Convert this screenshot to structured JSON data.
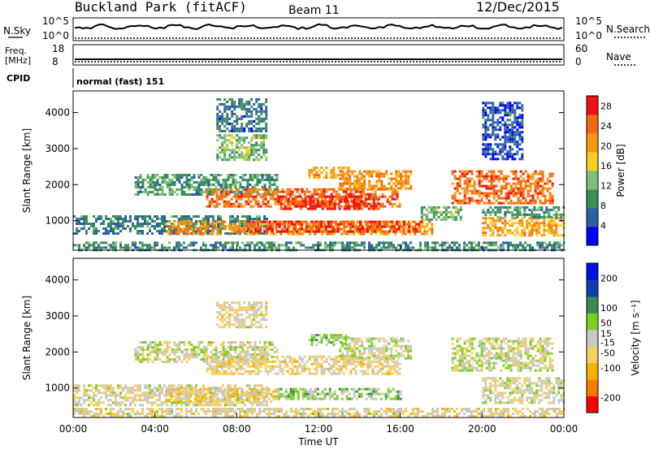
{
  "header": {
    "station": "Buckland Park (fitACF)",
    "beam": "Beam 11",
    "date": "12/Dec/2015"
  },
  "noise_panel": {
    "left_label": "N.Sky",
    "left_ticks": [
      "10^5",
      "10^0"
    ],
    "right_label": "N.Search",
    "right_ticks": [
      "10^5",
      "10^0"
    ]
  },
  "freq_panel": {
    "left_label_line1": "Freq.",
    "left_label_line2": "[MHz]",
    "left_ticks": [
      "18",
      "8"
    ],
    "right_label": "Nave",
    "right_ticks": [
      "60",
      "0"
    ]
  },
  "cpid": {
    "label": "CPID",
    "text": "normal (fast) 151"
  },
  "colors": {
    "power_scale": [
      "#0000ff",
      "#2d5fa8",
      "#3d8f5a",
      "#7cc07a",
      "#f5d020",
      "#f59a10",
      "#f56a10",
      "#f01010"
    ],
    "velocity_scale": [
      "#ff0000",
      "#ff7a00",
      "#f5b000",
      "#f5d060",
      "#c8c8c8",
      "#7cd020",
      "#3a8a50",
      "#1040b0",
      "#0010e0"
    ]
  },
  "chart_data": [
    {
      "type": "heatmap",
      "title": "Power",
      "ylabel": "Slant Range [km]",
      "xlabel": "Time UT",
      "x_ticks": [
        "00:00",
        "04:00",
        "08:00",
        "12:00",
        "16:00",
        "20:00",
        "00:00"
      ],
      "y_ticks": [
        1000,
        2000,
        3000,
        4000
      ],
      "ylim": [
        180,
        4600
      ],
      "xlim_hours": [
        0,
        24
      ],
      "colorbar": {
        "label": "Power [dB]",
        "ticks": [
          4,
          8,
          12,
          16,
          20,
          24,
          28
        ],
        "range": [
          0,
          30
        ]
      },
      "regions": [
        {
          "t0": 0.0,
          "t1": 24.0,
          "r0": 180,
          "r1": 420,
          "value": 9
        },
        {
          "t0": 0.0,
          "t1": 9.5,
          "r0": 650,
          "r1": 1150,
          "value": 8
        },
        {
          "t0": 4.5,
          "t1": 17.5,
          "r0": 600,
          "r1": 1000,
          "value": 21
        },
        {
          "t0": 8.5,
          "t1": 17.0,
          "r0": 700,
          "r1": 1000,
          "value": 26
        },
        {
          "t0": 3.0,
          "t1": 10.0,
          "r0": 1700,
          "r1": 2300,
          "value": 10
        },
        {
          "t0": 6.5,
          "t1": 16.0,
          "r0": 1400,
          "r1": 1900,
          "value": 24
        },
        {
          "t0": 10.0,
          "t1": 15.0,
          "r0": 1350,
          "r1": 1700,
          "value": 28
        },
        {
          "t0": 11.5,
          "t1": 13.5,
          "r0": 2200,
          "r1": 2500,
          "value": 20
        },
        {
          "t0": 13.0,
          "t1": 16.5,
          "r0": 1900,
          "r1": 2400,
          "value": 22
        },
        {
          "t0": 7.0,
          "t1": 9.5,
          "r0": 2700,
          "r1": 3400,
          "value": 13
        },
        {
          "t0": 7.0,
          "t1": 9.5,
          "r0": 3500,
          "r1": 4400,
          "value": 7
        },
        {
          "t0": 18.5,
          "t1": 23.5,
          "r0": 1500,
          "r1": 2400,
          "value": 24
        },
        {
          "t0": 17.0,
          "t1": 19.0,
          "r0": 1000,
          "r1": 1400,
          "value": 12
        },
        {
          "t0": 20.0,
          "t1": 24.0,
          "r0": 600,
          "r1": 1100,
          "value": 20
        },
        {
          "t0": 20.0,
          "t1": 24.0,
          "r0": 1100,
          "r1": 1400,
          "value": 10
        },
        {
          "t0": 20.0,
          "t1": 22.0,
          "r0": 2700,
          "r1": 4300,
          "value": 5
        }
      ]
    },
    {
      "type": "heatmap",
      "title": "Velocity",
      "ylabel": "Slant Range [km]",
      "xlabel": "Time UT",
      "x_ticks": [
        "00:00",
        "04:00",
        "08:00",
        "12:00",
        "16:00",
        "20:00",
        "00:00"
      ],
      "y_ticks": [
        1000,
        2000,
        3000,
        4000
      ],
      "ylim": [
        180,
        4600
      ],
      "xlim_hours": [
        0,
        24
      ],
      "colorbar": {
        "label": "Velocity [m s⁻¹]",
        "ticks": [
          200,
          100,
          50,
          15,
          -15,
          -50,
          -100,
          -200
        ],
        "range": [
          -250,
          250
        ]
      },
      "regions": [
        {
          "t0": 0.0,
          "t1": 24.0,
          "r0": 180,
          "r1": 450,
          "value": -30
        },
        {
          "t0": 0.0,
          "t1": 9.5,
          "r0": 500,
          "r1": 1100,
          "value": -20
        },
        {
          "t0": 4.5,
          "t1": 10.0,
          "r0": 600,
          "r1": 1000,
          "value": -60
        },
        {
          "t0": 10.0,
          "t1": 16.0,
          "r0": 700,
          "r1": 1000,
          "value": 40
        },
        {
          "t0": 3.0,
          "t1": 10.0,
          "r0": 1700,
          "r1": 2300,
          "value": 0
        },
        {
          "t0": 6.5,
          "t1": 16.0,
          "r0": 1400,
          "r1": 1900,
          "value": -40
        },
        {
          "t0": 11.5,
          "t1": 13.5,
          "r0": 2200,
          "r1": 2500,
          "value": 45
        },
        {
          "t0": 13.0,
          "t1": 16.5,
          "r0": 1800,
          "r1": 2400,
          "value": 0
        },
        {
          "t0": 7.0,
          "t1": 9.5,
          "r0": 2700,
          "r1": 3400,
          "value": -30
        },
        {
          "t0": 18.5,
          "t1": 23.5,
          "r0": 1500,
          "r1": 2400,
          "value": 0
        },
        {
          "t0": 20.0,
          "t1": 24.0,
          "r0": 600,
          "r1": 1300,
          "value": -10
        }
      ]
    }
  ]
}
